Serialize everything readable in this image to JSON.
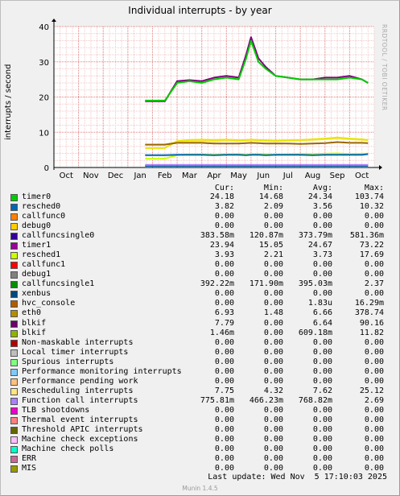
{
  "chart_data": {
    "type": "line",
    "title": "Individual interrupts - by year",
    "ylabel": "interrupts / second",
    "ylim": [
      0,
      40
    ],
    "yticks": [
      0,
      10,
      20,
      30,
      40
    ],
    "categories": [
      "Oct",
      "Nov",
      "Dec",
      "Jan",
      "Feb",
      "Mar",
      "Apr",
      "May",
      "Jun",
      "Jul",
      "Aug",
      "Sep",
      "Oct"
    ],
    "grid": true,
    "x": [
      0,
      3.65,
      3.7,
      4.5,
      5.0,
      5.5,
      6.0,
      6.5,
      7.0,
      7.5,
      7.8,
      8.0,
      8.3,
      8.6,
      9.0,
      9.5,
      10.0,
      10.5,
      11.0,
      11.5,
      12.0,
      12.5,
      12.75
    ],
    "series": [
      {
        "name": "timer0",
        "color": "#00cc00",
        "values": [
          null,
          null,
          19,
          19,
          24,
          24.5,
          24,
          25,
          25.5,
          25,
          31,
          36,
          30,
          28,
          26,
          25.5,
          25,
          25,
          25,
          25,
          25.5,
          25,
          24
        ]
      },
      {
        "name": "timer1",
        "color": "#800080",
        "values": [
          null,
          null,
          18.8,
          18.8,
          24.5,
          24.8,
          24.5,
          25.5,
          26,
          25.5,
          32,
          37,
          31,
          28.5,
          26,
          25.5,
          25,
          25,
          25.5,
          25.5,
          26,
          25,
          24
        ]
      },
      {
        "name": "eth0",
        "color": "#996600",
        "values": [
          null,
          null,
          6.5,
          6.5,
          7,
          7,
          7,
          6.8,
          6.8,
          6.8,
          6.9,
          7,
          6.9,
          6.8,
          6.8,
          6.8,
          6.7,
          6.8,
          6.9,
          7.2,
          7,
          7,
          6.9
        ]
      },
      {
        "name": "blkif",
        "color": "#e6e600",
        "values": [
          null,
          null,
          5.5,
          5.5,
          7.5,
          7.8,
          7.9,
          7.8,
          7.9,
          7.7,
          7.8,
          7.9,
          7.8,
          7.7,
          7.6,
          7.7,
          7.8,
          8,
          8.2,
          8.5,
          8.2,
          8,
          7.8
        ]
      },
      {
        "name": "Rescheduling interrupts",
        "color": "#ffe066",
        "values": [
          null,
          null,
          6.5,
          6.5,
          7.2,
          7.4,
          7.5,
          7.4,
          7.6,
          7.5,
          7.6,
          7.7,
          7.6,
          7.5,
          7.4,
          7.6,
          7.7,
          7.8,
          8,
          8.2,
          8,
          7.8,
          7.7
        ]
      },
      {
        "name": "resched0",
        "color": "#0066b3",
        "values": [
          null,
          null,
          3.5,
          3.5,
          3.6,
          3.6,
          3.6,
          3.5,
          3.6,
          3.6,
          3.5,
          3.6,
          3.6,
          3.5,
          3.6,
          3.6,
          3.6,
          3.5,
          3.6,
          3.6,
          3.6,
          3.6,
          3.8
        ]
      },
      {
        "name": "resched1",
        "color": "#ccff00",
        "values": [
          null,
          null,
          2.5,
          2.5,
          3.5,
          3.7,
          3.7,
          3.6,
          3.7,
          3.8,
          3.6,
          3.7,
          3.8,
          3.7,
          3.6,
          3.7,
          3.8,
          3.8,
          3.9,
          4,
          3.8,
          3.9,
          3.9
        ]
      }
    ],
    "legend_columns": [
      "Cur:",
      "Min:",
      "Avg:",
      "Max:"
    ],
    "legend": [
      {
        "name": "timer0",
        "color": "#00cc00",
        "cur": "24.18",
        "min": "14.68",
        "avg": "24.34",
        "max": "103.74"
      },
      {
        "name": "resched0",
        "color": "#0066b3",
        "cur": "3.82",
        "min": "2.09",
        "avg": "3.56",
        "max": "10.32"
      },
      {
        "name": "callfunc0",
        "color": "#ff8000",
        "cur": "0.00",
        "min": "0.00",
        "avg": "0.00",
        "max": "0.00"
      },
      {
        "name": "debug0",
        "color": "#ffcc00",
        "cur": "0.00",
        "min": "0.00",
        "avg": "0.00",
        "max": "0.00"
      },
      {
        "name": "callfuncsingle0",
        "color": "#330099",
        "cur": "383.58m",
        "min": "120.87m",
        "avg": "373.79m",
        "max": "581.36m"
      },
      {
        "name": "timer1",
        "color": "#990099",
        "cur": "23.94",
        "min": "15.05",
        "avg": "24.67",
        "max": "73.22"
      },
      {
        "name": "resched1",
        "color": "#ccff00",
        "cur": "3.93",
        "min": "2.21",
        "avg": "3.73",
        "max": "17.69"
      },
      {
        "name": "callfunc1",
        "color": "#ff0000",
        "cur": "0.00",
        "min": "0.00",
        "avg": "0.00",
        "max": "0.00"
      },
      {
        "name": "debug1",
        "color": "#808080",
        "cur": "0.00",
        "min": "0.00",
        "avg": "0.00",
        "max": "0.00"
      },
      {
        "name": "callfuncsingle1",
        "color": "#008f00",
        "cur": "392.22m",
        "min": "171.90m",
        "avg": "395.03m",
        "max": "2.37"
      },
      {
        "name": "xenbus",
        "color": "#00487d",
        "cur": "0.00",
        "min": "0.00",
        "avg": "0.00",
        "max": "0.00"
      },
      {
        "name": "hvc_console",
        "color": "#b35a00",
        "cur": "0.00",
        "min": "0.00",
        "avg": "1.83u",
        "max": "16.29m"
      },
      {
        "name": "eth0",
        "color": "#b38f00",
        "cur": "6.93",
        "min": "1.48",
        "avg": "6.66",
        "max": "378.74"
      },
      {
        "name": "blkif",
        "color": "#6b006b",
        "cur": "7.79",
        "min": "0.00",
        "avg": "6.64",
        "max": "90.16"
      },
      {
        "name": "blkif",
        "color": "#8fb300",
        "cur": "1.46m",
        "min": "0.00",
        "avg": "609.18m",
        "max": "11.82"
      },
      {
        "name": "Non-maskable interrupts",
        "color": "#b30000",
        "cur": "0.00",
        "min": "0.00",
        "avg": "0.00",
        "max": "0.00"
      },
      {
        "name": "Local timer interrupts",
        "color": "#bebebe",
        "cur": "0.00",
        "min": "0.00",
        "avg": "0.00",
        "max": "0.00"
      },
      {
        "name": "Spurious interrupts",
        "color": "#80ff80",
        "cur": "0.00",
        "min": "0.00",
        "avg": "0.00",
        "max": "0.00"
      },
      {
        "name": "Performance monitoring interrupts",
        "color": "#80c9ff",
        "cur": "0.00",
        "min": "0.00",
        "avg": "0.00",
        "max": "0.00"
      },
      {
        "name": "Performance pending work",
        "color": "#ffc080",
        "cur": "0.00",
        "min": "0.00",
        "avg": "0.00",
        "max": "0.00"
      },
      {
        "name": "Rescheduling interrupts",
        "color": "#ffe680",
        "cur": "7.75",
        "min": "4.32",
        "avg": "7.62",
        "max": "25.12"
      },
      {
        "name": "Function call interrupts",
        "color": "#aa80ff",
        "cur": "775.81m",
        "min": "466.23m",
        "avg": "768.82m",
        "max": "2.69"
      },
      {
        "name": "TLB shootdowns",
        "color": "#ee00cc",
        "cur": "0.00",
        "min": "0.00",
        "avg": "0.00",
        "max": "0.00"
      },
      {
        "name": "Thermal event interrupts",
        "color": "#ff8080",
        "cur": "0.00",
        "min": "0.00",
        "avg": "0.00",
        "max": "0.00"
      },
      {
        "name": "Threshold APIC interrupts",
        "color": "#666600",
        "cur": "0.00",
        "min": "0.00",
        "avg": "0.00",
        "max": "0.00"
      },
      {
        "name": "Machine check exceptions",
        "color": "#ffbfff",
        "cur": "0.00",
        "min": "0.00",
        "avg": "0.00",
        "max": "0.00"
      },
      {
        "name": "Machine check polls",
        "color": "#00ffcc",
        "cur": "0.00",
        "min": "0.00",
        "avg": "0.00",
        "max": "0.00"
      },
      {
        "name": "ERR",
        "color": "#cc6699",
        "cur": "0.00",
        "min": "0.00",
        "avg": "0.00",
        "max": "0.00"
      },
      {
        "name": "MIS",
        "color": "#999900",
        "cur": "0.00",
        "min": "0.00",
        "avg": "0.00",
        "max": "0.00"
      }
    ]
  },
  "credit": "RRDTOOL / TOBI OETIKER",
  "footer": {
    "last_update": "Last update: Wed Nov  5 17:10:03 2025",
    "munin": "Munin 1.4.5"
  }
}
